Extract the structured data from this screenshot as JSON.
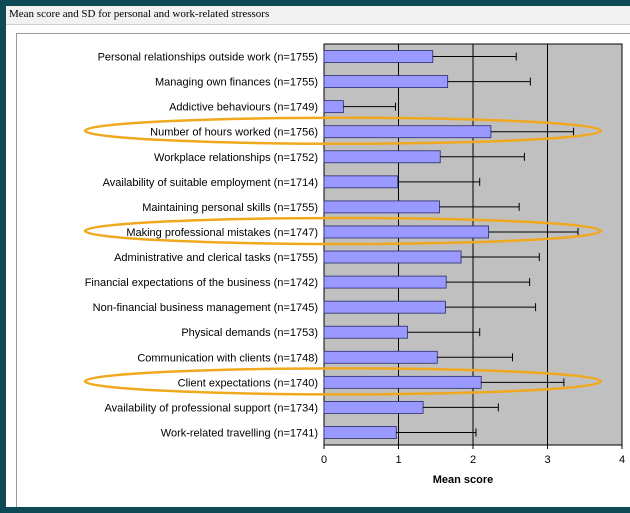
{
  "title": "Mean score and SD for personal and work-related stressors",
  "chart_data": {
    "type": "bar",
    "orientation": "horizontal",
    "error_bars": "SD",
    "title": "Mean score and SD for personal and work-related stressors",
    "xlabel": "Mean score",
    "ylabel": "",
    "xlim": [
      0,
      4
    ],
    "xticks": [
      "0",
      "1",
      "2",
      "3",
      "4"
    ],
    "grid": "vertical gridlines at 1, 2, 3",
    "plot_background": "#c0c0c0",
    "bar_color": "#9999ff",
    "highlight_color": "#f0a81e",
    "highlighted_categories": [
      "Number of hours worked (n=1756)",
      "Making professional mistakes (n=1747)",
      "Client expectations (n=1740)"
    ],
    "categories": [
      "Personal relationships outside work (n=1755)",
      "Managing own finances (n=1755)",
      "Addictive behaviours (n=1749)",
      "Number of hours worked (n=1756)",
      "Workplace relationships (n=1752)",
      "Availability of suitable employment (n=1714)",
      "Maintaining personal skills (n=1755)",
      "Making professional mistakes (n=1747)",
      "Administrative and clerical tasks (n=1755)",
      "Financial expectations of the business (n=1742)",
      "Non-financial business management (n=1745)",
      "Physical demands (n=1753)",
      "Communication with clients (n=1748)",
      "Client expectations (n=1740)",
      "Availability of professional support (n=1734)",
      "Work-related travelling (n=1741)"
    ],
    "values": [
      1.46,
      1.66,
      0.26,
      2.24,
      1.56,
      0.99,
      1.55,
      2.21,
      1.84,
      1.64,
      1.63,
      1.12,
      1.52,
      2.11,
      1.33,
      0.97
    ],
    "sd_upper": [
      2.58,
      2.77,
      0.96,
      3.35,
      2.69,
      2.09,
      2.62,
      3.41,
      2.89,
      2.76,
      2.84,
      2.09,
      2.53,
      3.22,
      2.34,
      2.04
    ]
  }
}
